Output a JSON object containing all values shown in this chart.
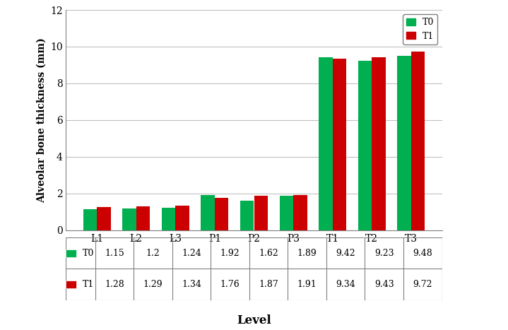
{
  "categories": [
    "L1",
    "L2",
    "L3",
    "P1",
    "P2",
    "P3",
    "T1",
    "T2",
    "T3"
  ],
  "T0_values": [
    1.15,
    1.2,
    1.24,
    1.92,
    1.62,
    1.89,
    9.42,
    9.23,
    9.48
  ],
  "T1_values": [
    1.28,
    1.29,
    1.34,
    1.76,
    1.87,
    1.91,
    9.34,
    9.43,
    9.72
  ],
  "T0_color": "#00B050",
  "T1_color": "#CC0000",
  "ylabel": "Alveolar bone thickness (mm)",
  "xlabel": "Level",
  "ylim": [
    0,
    12
  ],
  "yticks": [
    0,
    2,
    4,
    6,
    8,
    10,
    12
  ],
  "bar_width": 0.35,
  "table_row_T0_str": [
    "1.15",
    "1.2",
    "1.24",
    "1.92",
    "1.62",
    "1.89",
    "9.42",
    "9.23",
    "9.48"
  ],
  "table_row_T1_str": [
    "1.28",
    "1.29",
    "1.34",
    "1.76",
    "1.87",
    "1.91",
    "9.34",
    "9.43",
    "9.72"
  ],
  "background_color": "#FFFFFF",
  "grid_color": "#C0C0C0"
}
